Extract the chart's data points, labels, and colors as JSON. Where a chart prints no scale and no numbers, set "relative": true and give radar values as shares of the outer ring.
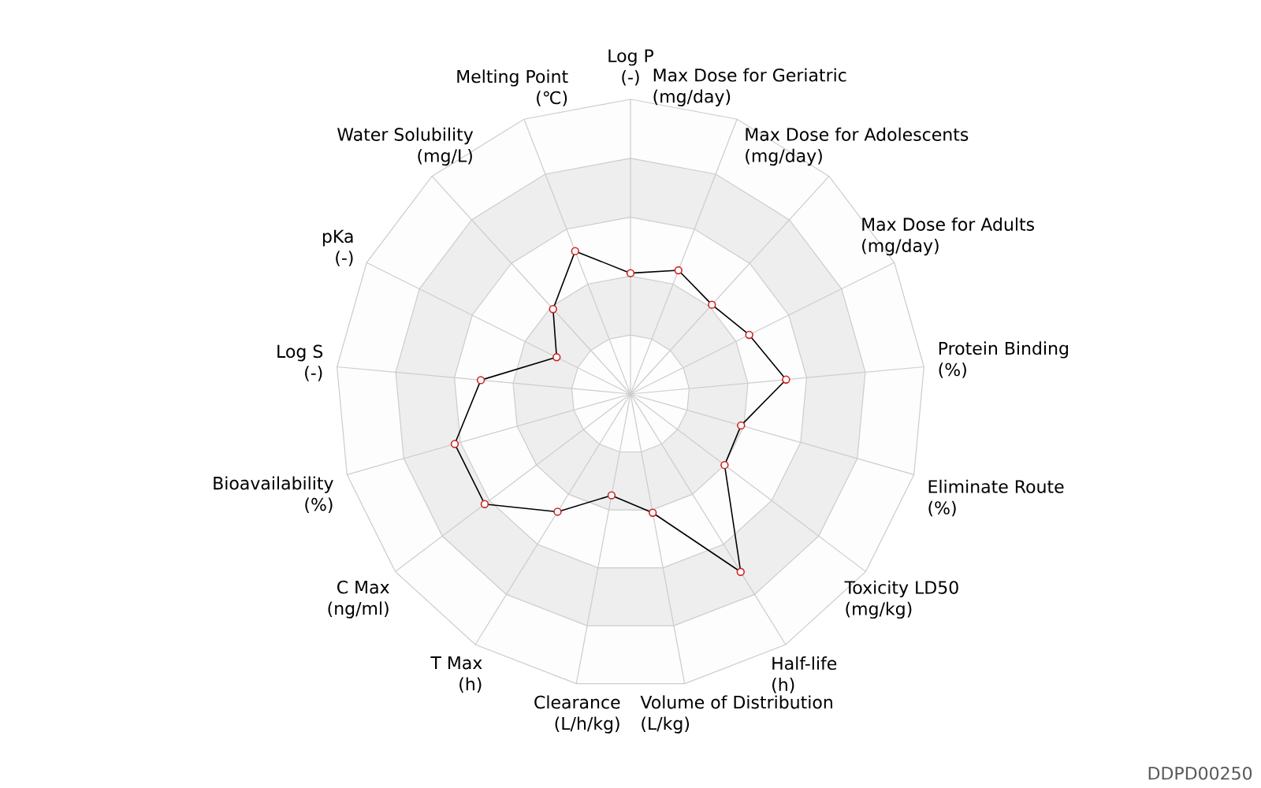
{
  "chart_data": {
    "type": "radar",
    "relative": true,
    "grid": true,
    "marker": "circle",
    "line_style": "solid",
    "categories": [
      "Log P\n(-)",
      "Max Dose for Geriatric\n(mg/day)",
      "Max Dose for Adolescents\n(mg/day)",
      "Max Dose for Adults\n(mg/day)",
      "Protein Binding\n(%)",
      "Eliminate Route\n(%)",
      "Toxicity LD50\n(mg/kg)",
      "Half-life\n(h)",
      "Volume of Distribution\n(L/kg)",
      "Clearance\n(L/h/kg)",
      "T Max\n(h)",
      "C Max\n(ng/ml)",
      "Bioavailability\n(%)",
      "Log S\n(-)",
      "pKa\n(-)",
      "Water Solubility\n(mg/L)",
      "Melting Point\n(℃)"
    ],
    "series": [
      {
        "color": "#000000",
        "values": [
          0.41,
          0.45,
          0.41,
          0.45,
          0.53,
          0.39,
          0.4,
          0.71,
          0.41,
          0.35,
          0.47,
          0.62,
          0.62,
          0.51,
          0.28,
          0.39,
          0.52
        ]
      }
    ],
    "annotations": [
      "DDPD00250"
    ]
  }
}
